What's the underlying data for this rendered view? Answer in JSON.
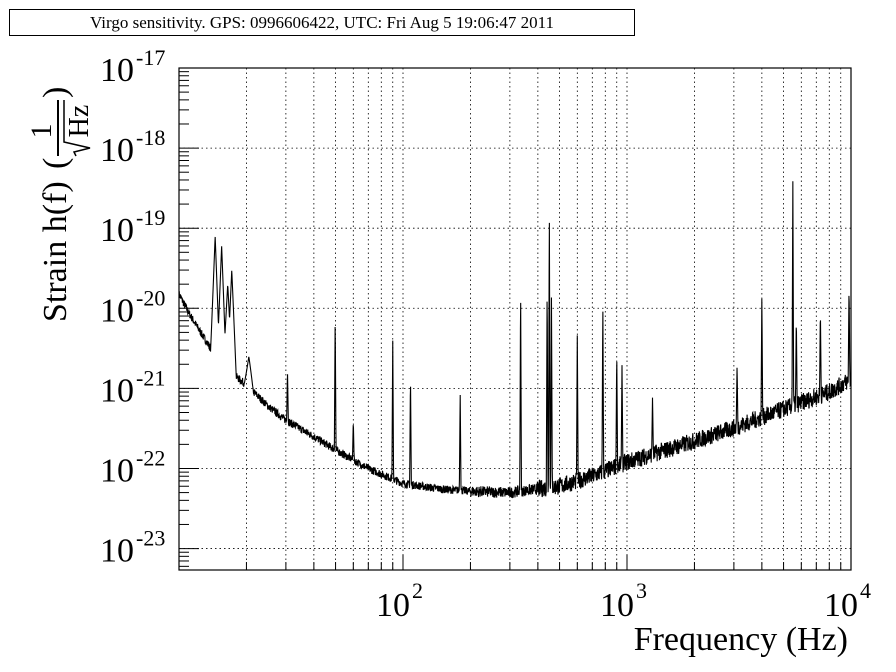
{
  "title": "Virgo sensitivity. GPS: 0996606422, UTC: Fri Aug  5 19:06:47 2011",
  "chart_data": {
    "type": "line",
    "title": "Virgo sensitivity. GPS: 0996606422, UTC: Fri Aug  5 19:06:47 2011",
    "xlabel": "Frequency (Hz)",
    "ylabel": "Strain h(f)",
    "ylabel_unit_numerator": "1",
    "ylabel_unit_denominator": "Hz",
    "xscale": "log",
    "yscale": "log",
    "xlim": [
      10,
      10000
    ],
    "ylim": [
      5.4e-24,
      1e-17
    ],
    "grid": true,
    "x_ticks": [
      {
        "base": "10",
        "exp": "2"
      },
      {
        "base": "10",
        "exp": "3"
      },
      {
        "base": "10",
        "exp": "4"
      }
    ],
    "y_ticks": [
      {
        "base": "10",
        "exp": "-17"
      },
      {
        "base": "10",
        "exp": "-18"
      },
      {
        "base": "10",
        "exp": "-19"
      },
      {
        "base": "10",
        "exp": "-20"
      },
      {
        "base": "10",
        "exp": "-21"
      },
      {
        "base": "10",
        "exp": "-22"
      },
      {
        "base": "10",
        "exp": "-23"
      }
    ],
    "series": [
      {
        "name": "h(f)",
        "color": "#000000",
        "baseline": [
          [
            10,
            1.5e-20
          ],
          [
            11,
            9e-21
          ],
          [
            12,
            6e-21
          ],
          [
            14,
            3e-21
          ],
          [
            17,
            1.6e-21
          ],
          [
            20,
            1.1e-21
          ],
          [
            25,
            6e-22
          ],
          [
            30,
            4e-22
          ],
          [
            40,
            2.5e-22
          ],
          [
            50,
            1.7e-22
          ],
          [
            70,
            1e-22
          ],
          [
            100,
            6.5e-23
          ],
          [
            150,
            5.5e-23
          ],
          [
            200,
            5.2e-23
          ],
          [
            300,
            5e-23
          ],
          [
            500,
            6e-23
          ],
          [
            700,
            8e-23
          ],
          [
            1000,
            1.2e-22
          ],
          [
            2000,
            2.2e-22
          ],
          [
            3000,
            3.2e-22
          ],
          [
            5000,
            5.5e-22
          ],
          [
            8000,
            9e-22
          ],
          [
            10000,
            1.3e-21
          ]
        ],
        "peaks": [
          [
            14.5,
            8e-20
          ],
          [
            15.5,
            6e-20
          ],
          [
            16.5,
            2e-20
          ],
          [
            17.2,
            3e-20
          ],
          [
            20.5,
            2.5e-21
          ],
          [
            30.5,
            1.7e-21
          ],
          [
            49.8,
            8e-21
          ],
          [
            60,
            4e-22
          ],
          [
            90,
            4e-21
          ],
          [
            108,
            1.5e-21
          ],
          [
            180,
            9e-22
          ],
          [
            335,
            2e-20
          ],
          [
            440,
            2.2e-20
          ],
          [
            450,
            2e-19
          ],
          [
            460,
            1.5e-20
          ],
          [
            600,
            5e-21
          ],
          [
            780,
            1.2e-20
          ],
          [
            900,
            3e-21
          ],
          [
            950,
            2e-21
          ],
          [
            1300,
            8e-22
          ],
          [
            3100,
            2e-21
          ],
          [
            4000,
            1.5e-20
          ],
          [
            5500,
            4e-19
          ],
          [
            5700,
            8e-21
          ],
          [
            7300,
            1e-20
          ],
          [
            9800,
            2e-20
          ]
        ]
      }
    ]
  }
}
